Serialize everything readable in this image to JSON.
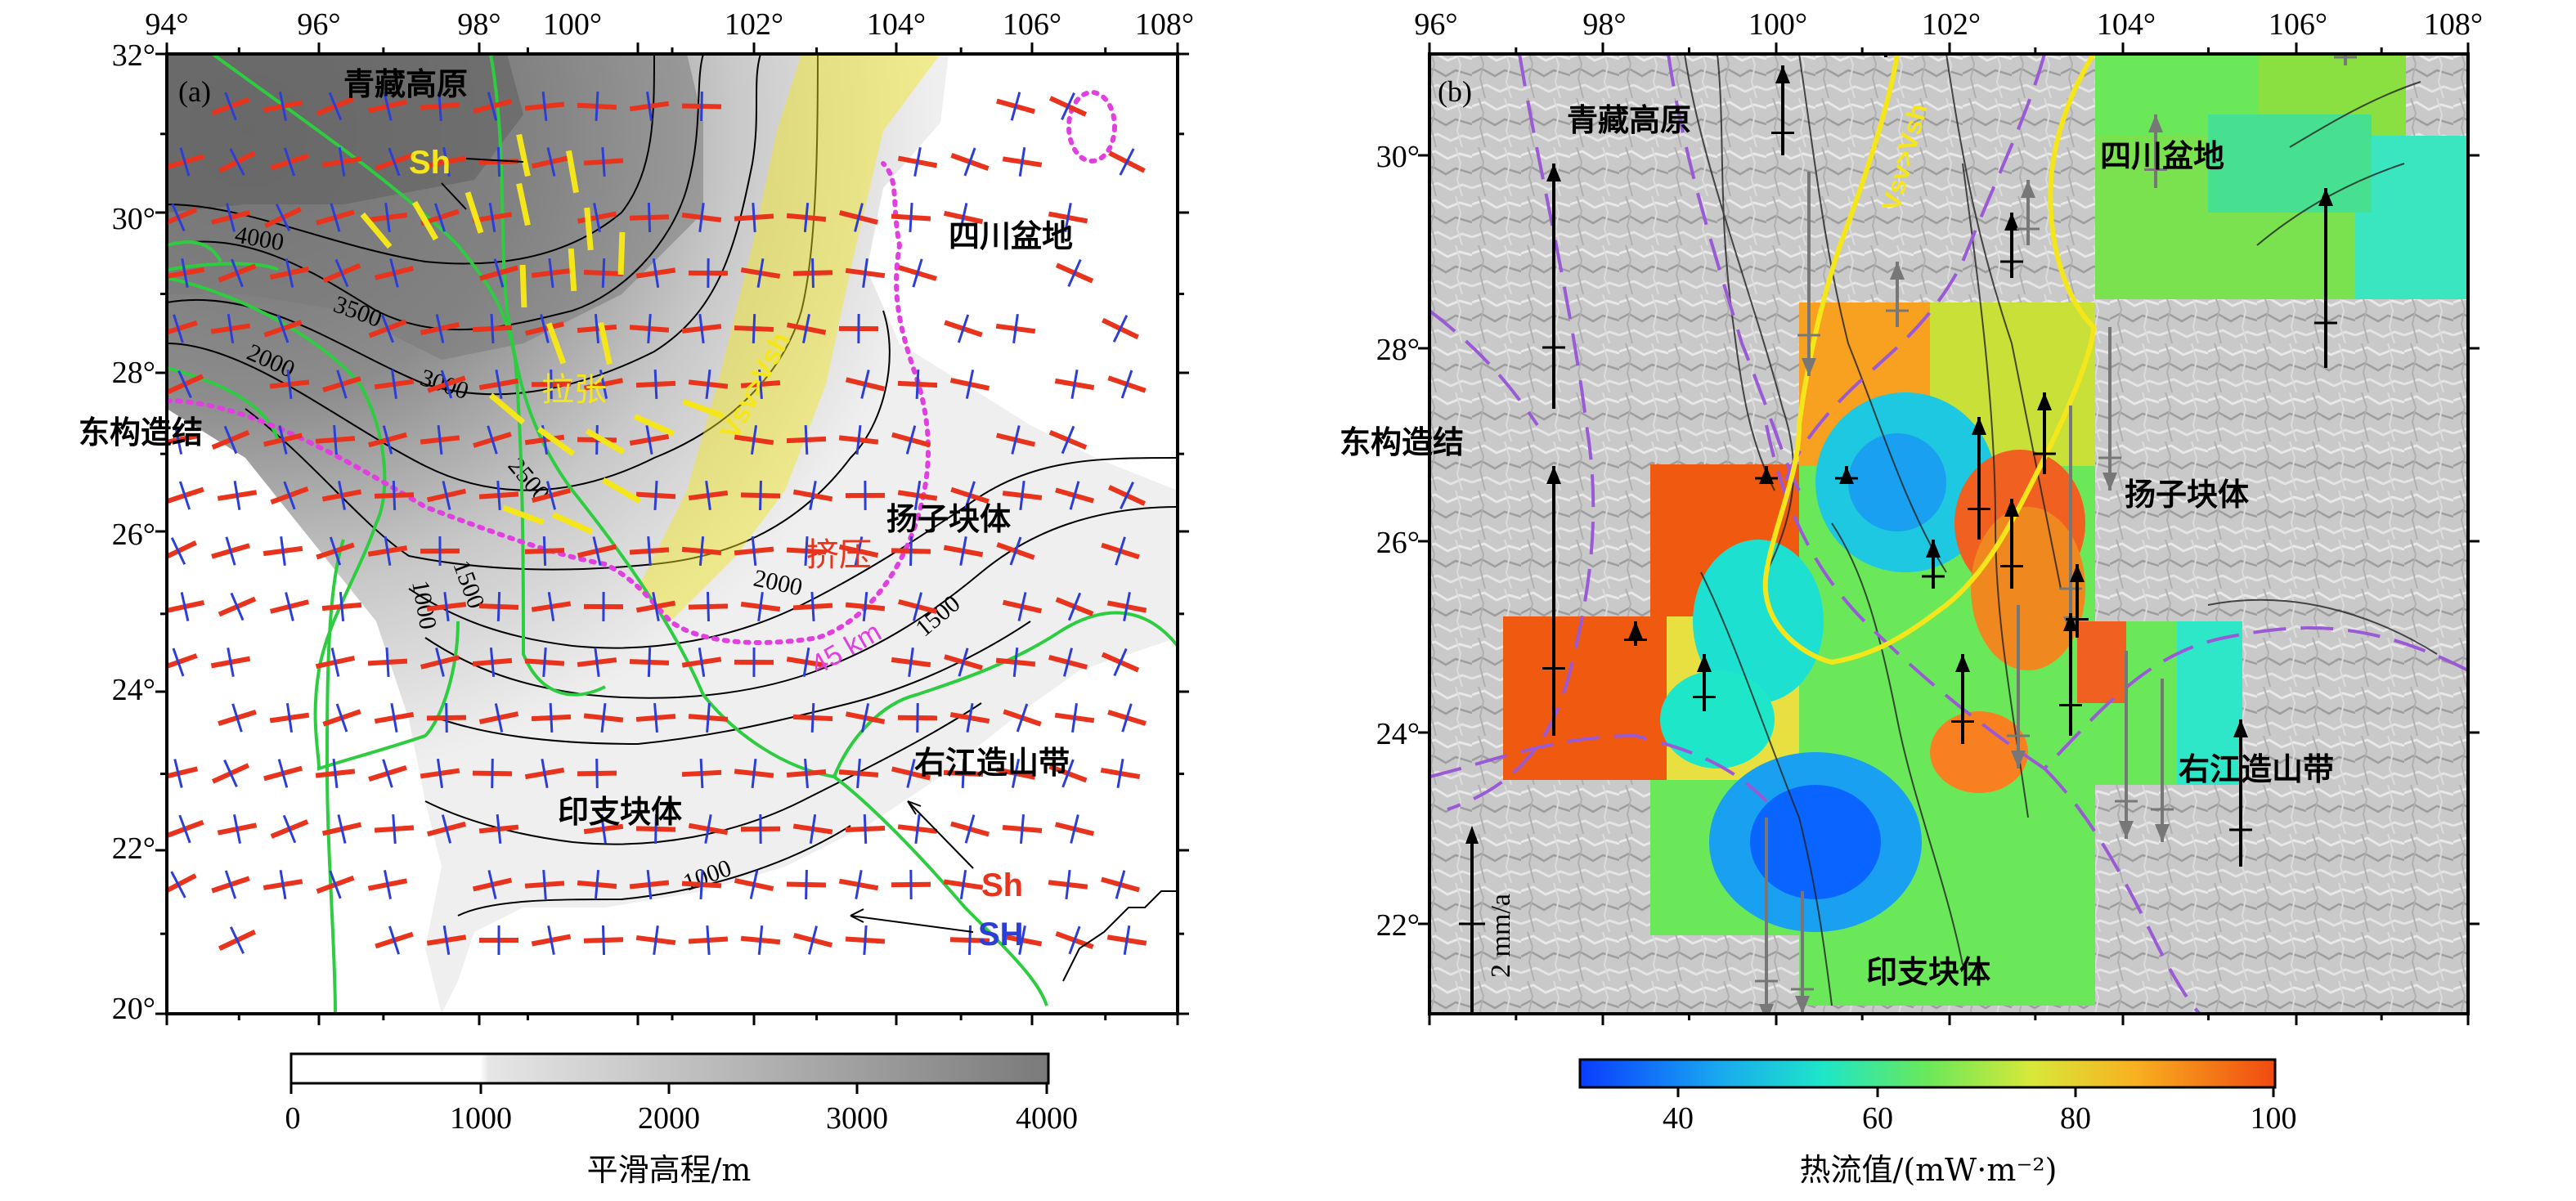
{
  "panel_a": {
    "tag": "(a)",
    "x_ticks": [
      "94°",
      "96°",
      "98°",
      "100°",
      "102°",
      "104°",
      "106°",
      "108°"
    ],
    "y_ticks": [
      "32°",
      "30°",
      "28°",
      "26°",
      "24°",
      "22°",
      "20°"
    ],
    "places": {
      "plateau": "青藏高原",
      "sichuan": "四川盆地",
      "syntaxis": "东构造结",
      "yangtze": "扬子块体",
      "youjiang": "右江造山带",
      "indochina": "印支块体"
    },
    "annotations": {
      "sh_top": "Sh",
      "extension": "拉张",
      "compression": "挤压",
      "vsv_vsh": "Vsv>Vsh",
      "depth": "45 km",
      "legend_sh": "Sh",
      "legend_SH": "SH"
    },
    "contours": [
      "4000",
      "3500",
      "3000",
      "2000",
      "2500",
      "2000",
      "1500",
      "1500",
      "1000",
      "1000"
    ],
    "colors": {
      "sh_red": "#e8341c",
      "SH_blue": "#2c3ed6",
      "yellow": "#f5e61c",
      "magenta": "#e040e0",
      "green": "#2ecc40"
    },
    "colorbar": {
      "title": "平滑高程/m",
      "ticks": [
        "0",
        "1000",
        "2000",
        "3000",
        "4000"
      ],
      "range": [
        0,
        4000
      ]
    }
  },
  "panel_b": {
    "tag": "(b)",
    "x_ticks": [
      "96°",
      "98°",
      "100°",
      "102°",
      "104°",
      "106°",
      "108°"
    ],
    "y_ticks": [
      "30°",
      "28°",
      "26°",
      "24°",
      "22°"
    ],
    "places": {
      "plateau": "青藏高原",
      "sichuan": "四川盆地",
      "syntaxis": "东构造结",
      "yangtze": "扬子块体",
      "youjiang": "右江造山带",
      "indochina": "印支块体"
    },
    "annotations": {
      "vsv_vsh": "Vsv>Vsh",
      "scale": "2 mm/a"
    },
    "colors": {
      "yellow": "#f5e61c",
      "purple": "#9a5ad6"
    },
    "colorbar": {
      "title": "热流值/(mW·m⁻²)",
      "ticks": [
        "40",
        "60",
        "80",
        "100"
      ],
      "range": [
        30,
        100
      ]
    }
  }
}
